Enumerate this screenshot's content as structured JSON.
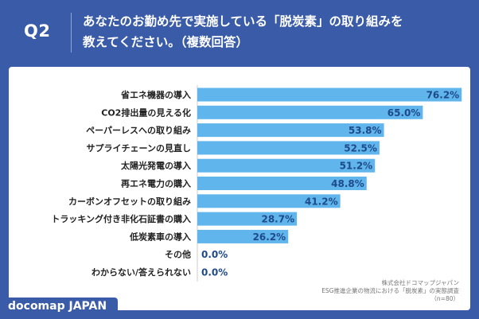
{
  "header": {
    "question_label": "Q2",
    "question_line1": "あなたのお勤め先で実施している「脱炭素」の取り組みを",
    "question_line2": "教えてください。（複数回答）"
  },
  "colors": {
    "background": "#3a5ca8",
    "bar": "#5fb5ec",
    "value_text": "#1f4a8a",
    "card": "#ffffff"
  },
  "chart_data": {
    "type": "bar",
    "orientation": "horizontal",
    "categories": [
      "省エネ機器の導入",
      "CO2排出量の見える化",
      "ペーパーレスへの取り組み",
      "サプライチェーンの見直し",
      "太陽光発電の導入",
      "再エネ電力の購入",
      "カーボンオフセットの取り組み",
      "トラッキング付き非化石証書の購入",
      "低炭素車の導入",
      "その他",
      "わからない/答えられない"
    ],
    "values": [
      76.2,
      65.0,
      53.8,
      52.5,
      51.2,
      48.8,
      41.2,
      28.7,
      26.2,
      0.0,
      0.0
    ],
    "value_labels": [
      "76.2%",
      "65.0%",
      "53.8%",
      "52.5%",
      "51.2%",
      "48.8%",
      "41.2%",
      "28.7%",
      "26.2%",
      "0.0%",
      "0.0%"
    ],
    "xlim": [
      0,
      80
    ],
    "grid": false,
    "legend": "none"
  },
  "source": {
    "line1": "株式会社ドコマップジャパン",
    "line2": "ESG推進企業の物流における「脱炭素」の実態調査",
    "line3": "（n=80）"
  },
  "brand": {
    "label": "docomap JAPAN"
  }
}
